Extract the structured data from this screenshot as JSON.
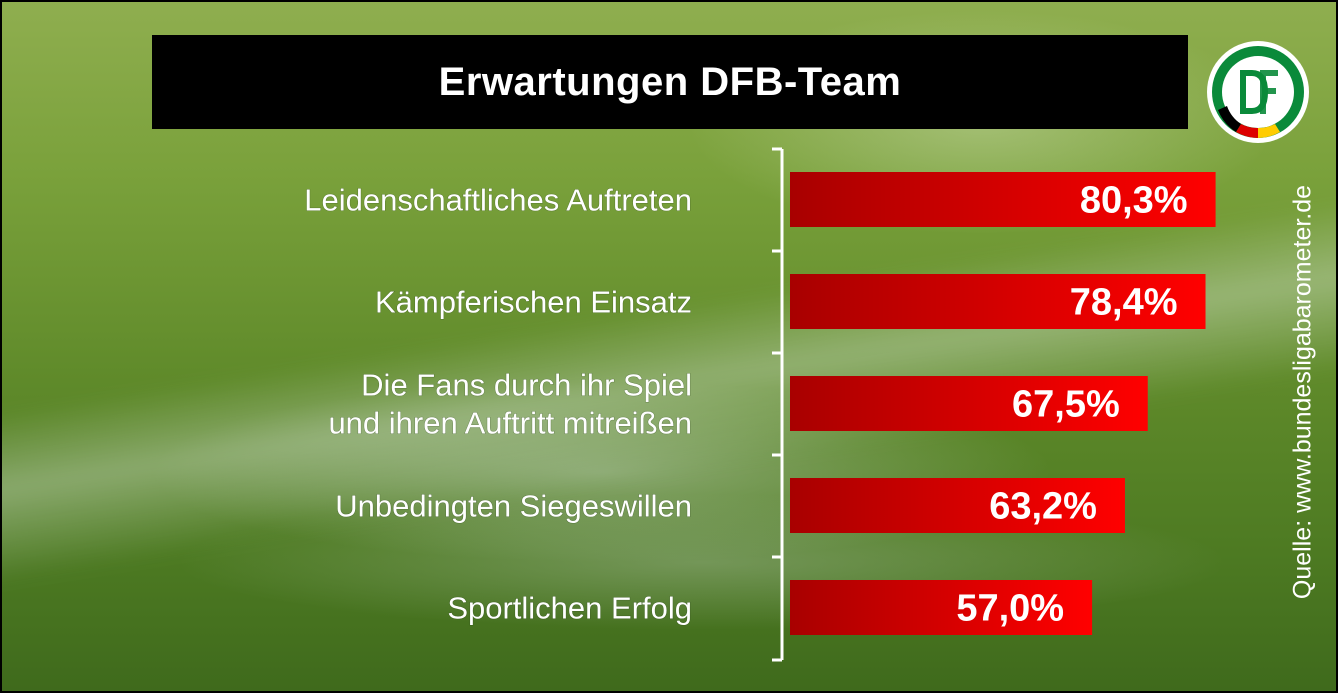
{
  "title": "Erwartungen DFB-Team",
  "source": "Quelle: www.bundesligabarometer.de",
  "logo": {
    "icon": "dfb-logo-icon",
    "text": "DFB",
    "ring_color": "#0a8a3a",
    "flag_colors": [
      "#000000",
      "#dd0000",
      "#ffcc00"
    ]
  },
  "colors": {
    "bar_dark": "#a80000",
    "bar_light": "#ff0000",
    "title_bg": "#000000",
    "text": "#ffffff"
  },
  "chart_data": {
    "type": "bar",
    "orientation": "horizontal",
    "categories": [
      [
        "Leidenschaftliches Auftreten"
      ],
      [
        "Kämpferischen Einsatz"
      ],
      [
        "Die Fans durch ihr Spiel",
        "und ihren Auftritt mitreißen"
      ],
      [
        "Unbedingten Siegeswillen"
      ],
      [
        "Sportlichen Erfolg"
      ]
    ],
    "values": [
      80.3,
      78.4,
      67.5,
      63.2,
      57.0
    ],
    "value_labels": [
      "80,3%",
      "78,4%",
      "67,5%",
      "63,2%",
      "57,0%"
    ],
    "unit": "%",
    "xlim": [
      0,
      100
    ],
    "grid": false,
    "legend": "none"
  }
}
